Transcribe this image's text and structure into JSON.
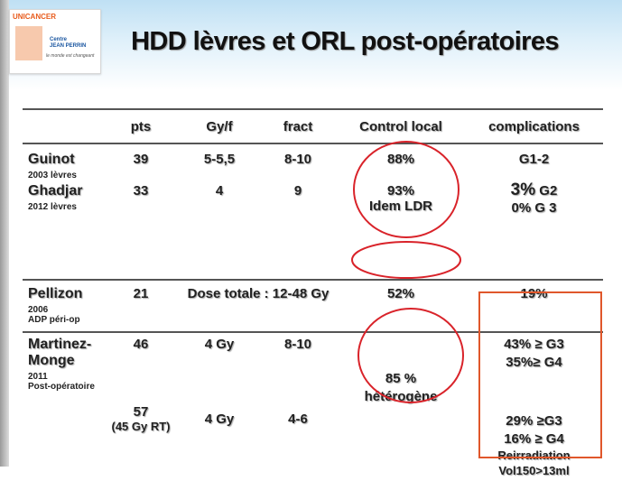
{
  "logo": {
    "unicancer": "UNICANCER",
    "center_line1": "Centre",
    "center_line2": "JEAN PERRIN",
    "signature": "le monde est changeant"
  },
  "title": "HDD lèvres et ORL post-opératoires",
  "columns": [
    "pts",
    "Gy/f",
    "fract",
    "Control local",
    "complications"
  ],
  "rows": {
    "guinot": {
      "name": "Guinot",
      "sub": "2003 lèvres",
      "pts": "39",
      "gyf": "5-5,5",
      "fract": "8-10",
      "control": "88%",
      "comp": "G1-2"
    },
    "ghadjar": {
      "name": "Ghadjar",
      "sub": "2012 lèvres",
      "pts": "33",
      "gyf": "4",
      "fract": "9",
      "control1": "93%",
      "control2": "Idem LDR",
      "comp1_value": "3%",
      "comp1_grade": " G2",
      "comp2": "0% G 3"
    },
    "pellizon": {
      "name": "Pellizon",
      "sub1": "2006",
      "sub2": "ADP péri-op",
      "pts": "21",
      "dose": "Dose totale : 12-48 Gy",
      "control": "52%",
      "comp": "19%"
    },
    "martinez": {
      "name1": "Martinez-",
      "name2": "Monge",
      "sub1": "2011",
      "sub2": "Post-opératoire",
      "pts1": "46",
      "gyf1": "4 Gy",
      "fract1": "8-10",
      "control1": "85 %",
      "control2": "hétérogène",
      "comp1": "43% ≥ G3",
      "comp2": "35%≥ G4",
      "pts2": "57",
      "pts2_sub": "(45 Gy RT)",
      "gyf2": "4 Gy",
      "fract2": "4-6",
      "comp3": "29% ≥G3",
      "comp4": "16% ≥ G4",
      "comp5": "Reirradiation",
      "comp6": "Vol150>13ml"
    }
  },
  "colors": {
    "accent": "#d9232a",
    "box": "#e0572b",
    "header_bg": "#cfe8f7"
  }
}
